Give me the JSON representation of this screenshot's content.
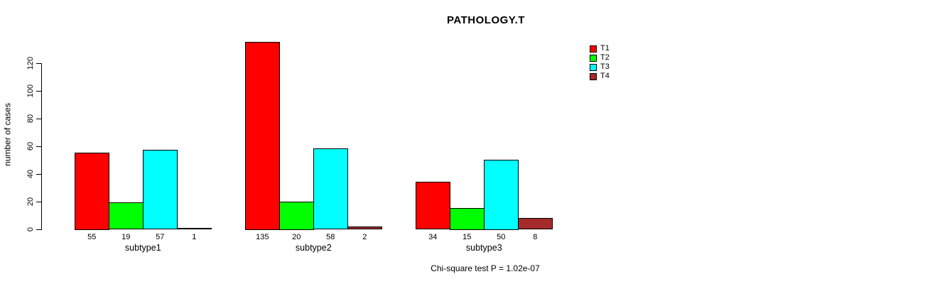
{
  "chart_data": {
    "type": "bar",
    "title": "PATHOLOGY.T",
    "ylabel": "number of cases",
    "xlabel": "",
    "categories": [
      "subtype1",
      "subtype2",
      "subtype3"
    ],
    "series": [
      {
        "name": "T1",
        "color": "#FF0000",
        "values": [
          55,
          135,
          34
        ]
      },
      {
        "name": "T2",
        "color": "#00FF00",
        "values": [
          19,
          20,
          15
        ]
      },
      {
        "name": "T3",
        "color": "#00FFFF",
        "values": [
          57,
          58,
          50
        ]
      },
      {
        "name": "T4",
        "color": "#A52A2A",
        "values": [
          1,
          2,
          8
        ]
      }
    ],
    "yticks": [
      0,
      20,
      40,
      60,
      80,
      100,
      120
    ],
    "ylim": [
      0,
      135
    ],
    "bar_value_labels": true,
    "grid": false,
    "legend_position": "right",
    "footer": "Chi-square test P = 1.02e-07"
  }
}
